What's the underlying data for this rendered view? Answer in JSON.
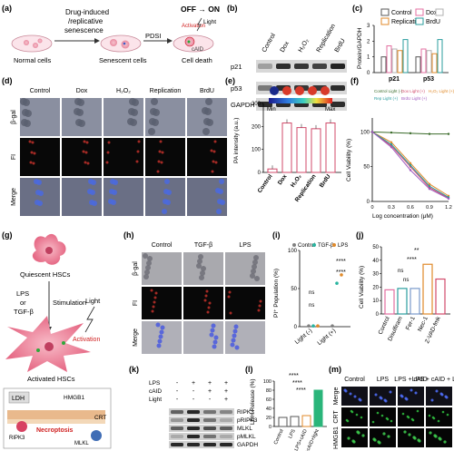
{
  "panels": {
    "a": {
      "label": "(a)",
      "text_drug": "Drug-induced",
      "text_rep": "/replicative",
      "text_sen": "senescence",
      "normal": "Normal cells",
      "senescent": "Senescent cells",
      "death": "Cell death",
      "pdsi": "PDSI",
      "offon": "OFF → ON",
      "light": "Light",
      "activation": "Activation",
      "caid": "cAID"
    },
    "b": {
      "label": "(b)",
      "columns": [
        "Control",
        "Dox",
        "H₂O₂",
        "Replication",
        "BrdU"
      ],
      "rows": [
        "p21",
        "p53",
        "GAPDH"
      ]
    },
    "c": {
      "label": "(c)",
      "ylabel": "Protein/GAPDH",
      "legend": [
        "Control",
        "Dox",
        "Replication",
        "BrdU"
      ],
      "legend_extra": "H₂O₂",
      "colors": [
        "#555555",
        "#e36fa0",
        "#e08a2a",
        "#2a9d9e",
        "#b0b0b0"
      ]
    },
    "d": {
      "label": "(d)",
      "columns": [
        "Control",
        "Dox",
        "H₂O₂",
        "Replication",
        "BrdU"
      ],
      "rows": [
        "β-gal",
        "FI",
        "Merge"
      ]
    },
    "e": {
      "label": "(e)",
      "ylabel": "PA intensity (a.u.)",
      "min": "Min",
      "max": "Max"
    },
    "f": {
      "label": "(f)",
      "ylabel": "Cell Viability (%)",
      "xlabel": "Log concentration (μM)"
    },
    "g": {
      "label": "(g)",
      "quiescent": "Quiescent HSCs",
      "lps_or": "LPS",
      "or": "or",
      "tgf": "TGF-β",
      "stimulation": "Stimulation",
      "light": "Light",
      "activation": "Activation",
      "activated": "Activated HSCs",
      "ldh": "LDH",
      "hmgb1": "HMGB1",
      "crt": "CRT",
      "ripk3": "RIPK3",
      "necroptosis": "Necroptosis",
      "mlkl": "MLKL"
    },
    "h": {
      "label": "(h)",
      "columns": [
        "Control",
        "TGF-β",
        "LPS"
      ],
      "rows": [
        "β-gal",
        "FI",
        "Merge"
      ]
    },
    "i": {
      "label": "(i)",
      "ylabel": "PI⁺ Population (%)",
      "legend": [
        "Control",
        "TGF-β",
        "LPS"
      ],
      "xcats": [
        "Light (-)",
        "Light (+)"
      ],
      "ns": "ns",
      "sig": "****"
    },
    "j": {
      "label": "(j)",
      "ylabel": "Cell Viability (%)",
      "xcats": [
        "Control",
        "Disulfiram",
        "Fer-1",
        "Nec-1",
        "Z-VAD-fmk"
      ],
      "ns": "ns",
      "sig2": "**",
      "sig4": "****"
    },
    "k": {
      "label": "(k)",
      "conditions": [
        "LPS",
        "cAID",
        "Light"
      ],
      "signs": [
        [
          "-",
          "+",
          "+",
          "+"
        ],
        [
          "-",
          "-",
          "+",
          "+"
        ],
        [
          "-",
          "-",
          "-",
          "+"
        ]
      ],
      "rows": [
        "RIPK3",
        "pRIPK3",
        "MLKL",
        "pMLKL",
        "GAPDH"
      ]
    },
    "l": {
      "label": "(l)",
      "ylabel": "LDH Release (%)",
      "xcats": [
        "Control",
        "LPS",
        "LPS+cAID",
        "LPS+cAID+light"
      ],
      "sig": "****"
    },
    "m": {
      "label": "(m)",
      "columns": [
        "Control",
        "LPS",
        "LPS + cAID",
        "LPS + cAID + Light"
      ],
      "rows": [
        "Merge",
        "CRT",
        "HMGB1"
      ]
    }
  },
  "chart_data": [
    {
      "panel": "c",
      "type": "bar",
      "ylabel": "Protein/GAPDH",
      "categories": [
        "p21",
        "p53"
      ],
      "ylim": [
        0,
        3
      ],
      "series": [
        {
          "name": "Control",
          "values": [
            1.0,
            1.0
          ]
        },
        {
          "name": "Dox",
          "values": [
            1.7,
            1.5
          ]
        },
        {
          "name": "H₂O₂",
          "values": [
            1.5,
            1.4
          ]
        },
        {
          "name": "Replication",
          "values": [
            1.4,
            1.2
          ]
        },
        {
          "name": "BrdU",
          "values": [
            2.1,
            2.1
          ]
        }
      ]
    },
    {
      "panel": "e",
      "type": "bar",
      "ylabel": "PA intensity (a.u.)",
      "categories": [
        "Control",
        "Dox",
        "H₂O₂",
        "Replication",
        "BrdU"
      ],
      "values": [
        15,
        215,
        195,
        190,
        215
      ],
      "ylim": [
        0,
        300
      ]
    },
    {
      "panel": "f",
      "type": "line",
      "ylabel": "Cell Viability (%)",
      "xlabel": "Log concentration (μM)",
      "xlim": [
        0,
        1.2
      ],
      "ylim": [
        0,
        120
      ],
      "series": [
        {
          "name": "Control Light (-)",
          "x": [
            0,
            0.3,
            0.6,
            0.9,
            1.2
          ],
          "y": [
            100,
            99,
            98,
            97,
            97
          ]
        },
        {
          "name": "Dox Light (+)",
          "x": [
            0,
            0.3,
            0.6,
            0.9,
            1.2
          ],
          "y": [
            100,
            80,
            50,
            20,
            5
          ]
        },
        {
          "name": "H₂O₂ Light (+)",
          "x": [
            0,
            0.3,
            0.6,
            0.9,
            1.2
          ],
          "y": [
            100,
            85,
            55,
            25,
            8
          ]
        },
        {
          "name": "Rep Light (+)",
          "x": [
            0,
            0.3,
            0.6,
            0.9,
            1.2
          ],
          "y": [
            100,
            82,
            52,
            22,
            6
          ]
        },
        {
          "name": "BrdU Light (+)",
          "x": [
            0,
            0.3,
            0.6,
            0.9,
            1.2
          ],
          "y": [
            100,
            78,
            45,
            18,
            4
          ]
        }
      ]
    },
    {
      "panel": "i",
      "type": "bar",
      "ylabel": "PI⁺ Population (%)",
      "categories": [
        "Light (-)",
        "Light (+)"
      ],
      "ylim": [
        0,
        100
      ],
      "series": [
        {
          "name": "Control",
          "values": [
            1,
            1
          ]
        },
        {
          "name": "TGF-β",
          "values": [
            1,
            57
          ]
        },
        {
          "name": "LPS",
          "values": [
            1,
            68
          ]
        }
      ]
    },
    {
      "panel": "j",
      "type": "bar",
      "ylabel": "Cell Viability (%)",
      "categories": [
        "Control",
        "Disulfiram",
        "Fer-1",
        "Nec-1",
        "Z-VAD-fmk"
      ],
      "values": [
        18,
        19,
        19,
        37,
        26
      ],
      "ylim": [
        0,
        50
      ]
    },
    {
      "panel": "l",
      "type": "bar",
      "ylabel": "LDH Release (%)",
      "categories": [
        "Control",
        "LPS",
        "LPS+cAID",
        "LPS+cAID+light"
      ],
      "values": [
        20,
        22,
        24,
        80
      ],
      "ylim": [
        0,
        100
      ]
    }
  ]
}
